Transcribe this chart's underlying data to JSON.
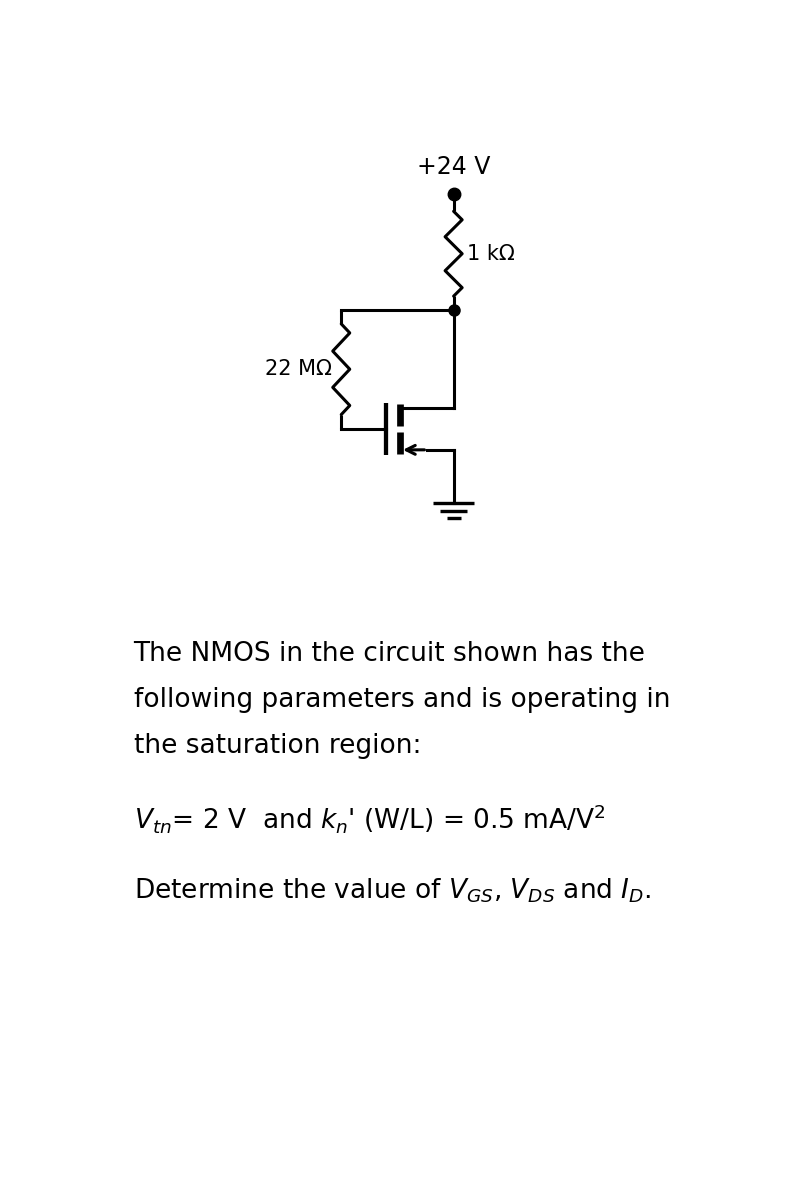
{
  "bg_color": "#ffffff",
  "line_color": "#000000",
  "line_width": 2.2,
  "fig_width": 8.08,
  "fig_height": 12.0,
  "vdd_label": "+24 V",
  "r1_label": "1 kΩ",
  "r2_label": "22 MΩ",
  "text_line1": "The NMOS in the circuit shown has the",
  "text_line2": "following parameters and is operating in",
  "text_line3": "the saturation region:",
  "font_size_text": 19,
  "font_size_label": 15,
  "font_size_vdd": 17
}
